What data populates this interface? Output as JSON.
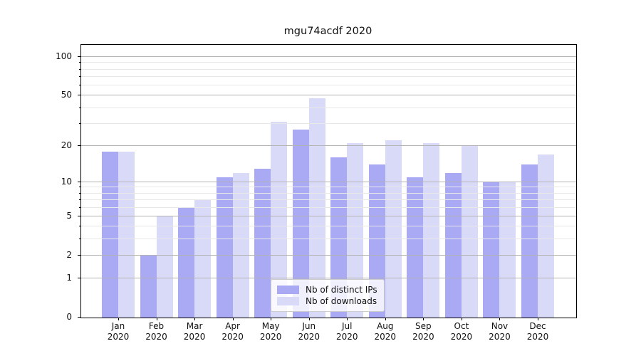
{
  "title": "mgu74acdf 2020",
  "chart_data": {
    "type": "bar",
    "title": "mgu74acdf 2020",
    "categories": [
      "Jan",
      "Feb",
      "Mar",
      "Apr",
      "May",
      "Jun",
      "Jul",
      "Aug",
      "Sep",
      "Oct",
      "Nov",
      "Dec"
    ],
    "category_year": "2020",
    "series": [
      {
        "name": "Nb of distinct IPs",
        "color": "#a9a9f4",
        "values": [
          18,
          2,
          6,
          11,
          13,
          27,
          16,
          14,
          11,
          12,
          10,
          14
        ]
      },
      {
        "name": "Nb of downloads",
        "color": "#d9d9f8",
        "values": [
          18,
          5,
          7,
          12,
          31,
          48,
          21,
          22,
          21,
          20,
          10,
          17
        ]
      }
    ],
    "y_scale": "log1p",
    "y_major_ticks": [
      0,
      1,
      2,
      5,
      10,
      20,
      50,
      100
    ],
    "y_minor_ticks": [
      3,
      4,
      6,
      7,
      8,
      9,
      30,
      40,
      60,
      70,
      80,
      90
    ],
    "y_axis_top_value": 124.4,
    "ylim": [
      0,
      124.4
    ],
    "xlabel": "",
    "ylabel": "",
    "grid": "both",
    "legend_position": "bottom-center"
  },
  "colors": {
    "bar_distinct_ips": "#a9a9f4",
    "bar_downloads": "#d9d9f8",
    "grid_major": "#b3b3b3",
    "grid_minor": "#e8e8e8",
    "spine": "#000000",
    "text": "#111111",
    "legend_border": "#cccccc",
    "background": "#ffffff"
  }
}
